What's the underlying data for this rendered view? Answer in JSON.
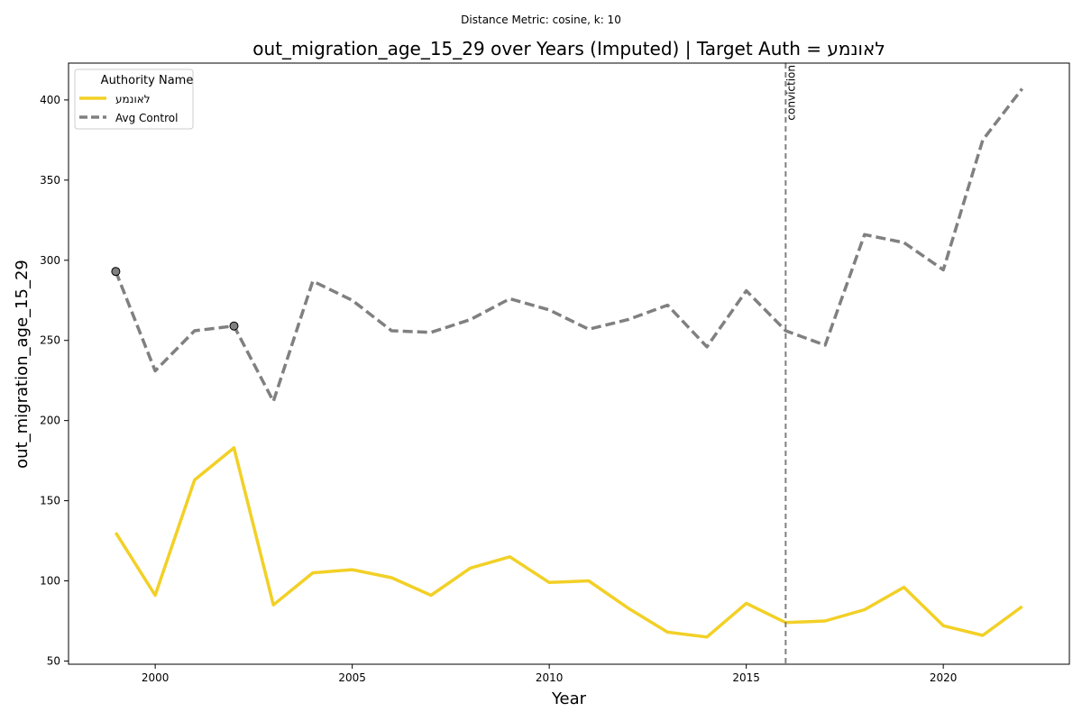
{
  "chart_data": {
    "type": "line",
    "suptitle": "Distance Metric: cosine, k: 10",
    "title": "out_migration_age_15_29 over Years (Imputed) | Target Auth = לאונמע",
    "xlabel": "Year",
    "ylabel": "out_migration_age_15_29",
    "xlim": [
      1997.8,
      2023.2
    ],
    "ylim": [
      48,
      423
    ],
    "xticks": [
      2000,
      2005,
      2010,
      2015,
      2020
    ],
    "yticks": [
      50,
      100,
      150,
      200,
      250,
      300,
      350,
      400
    ],
    "grid": false,
    "legend": {
      "title": "Authority Name",
      "placement": "top-left"
    },
    "x": [
      1999,
      2000,
      2001,
      2002,
      2003,
      2004,
      2005,
      2006,
      2007,
      2008,
      2009,
      2010,
      2011,
      2012,
      2013,
      2014,
      2015,
      2016,
      2017,
      2018,
      2019,
      2020,
      2021,
      2022
    ],
    "series": [
      {
        "name": "לאונמע",
        "color": "#f2d026",
        "style": "solid",
        "values": [
          130,
          91,
          163,
          183,
          85,
          105,
          107,
          102,
          91,
          108,
          115,
          99,
          100,
          83,
          68,
          65,
          86,
          74,
          75,
          82,
          96,
          72,
          66,
          84
        ]
      },
      {
        "name": "Avg Control",
        "color": "#808080",
        "style": "dashed",
        "values": [
          293,
          231,
          256,
          259,
          212,
          287,
          275,
          256,
          255,
          263,
          276,
          269,
          257,
          263,
          272,
          246,
          281,
          256,
          247,
          316,
          311,
          294,
          375,
          407
        ]
      }
    ],
    "markers": [
      {
        "series": "Avg Control",
        "x": 1999,
        "y": 293
      },
      {
        "series": "Avg Control",
        "x": 2002,
        "y": 259
      }
    ],
    "event_line": {
      "x": 2016,
      "label": "conviction",
      "color": "#808080"
    }
  }
}
